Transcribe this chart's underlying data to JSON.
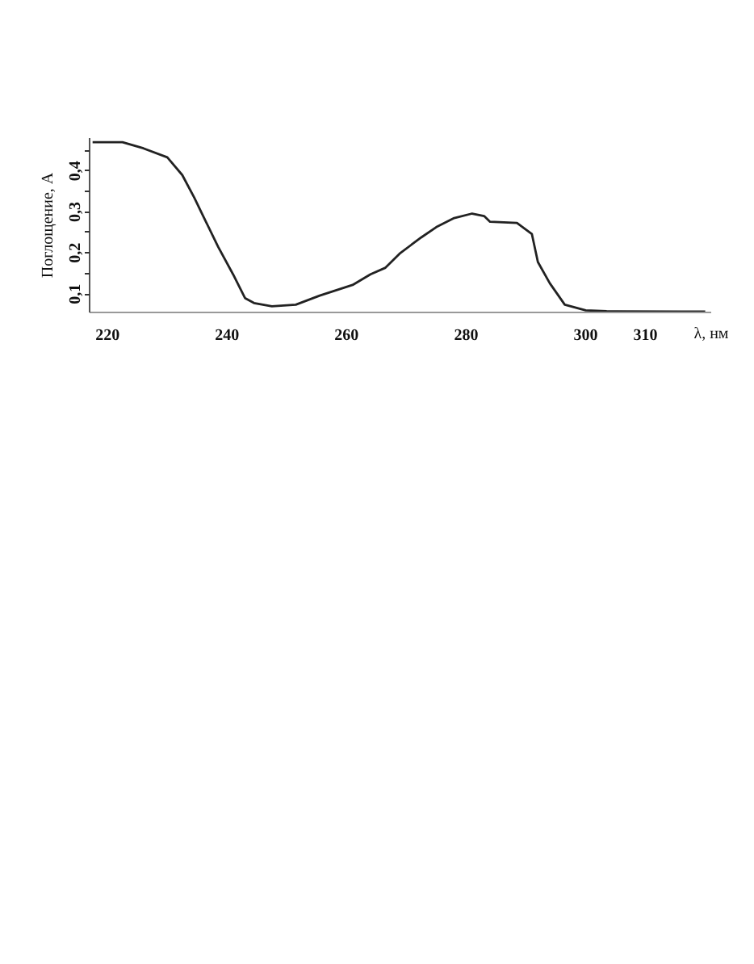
{
  "chart_data": {
    "type": "line",
    "xlabel": "λ, нм",
    "ylabel": "Поглощение, A",
    "xlim": [
      217,
      321
    ],
    "xticks": [
      220,
      240,
      260,
      280,
      300,
      310
    ],
    "ylim": [
      0.055,
      0.48
    ],
    "yticks": [
      {
        "value": 0.1,
        "label": "0,1"
      },
      {
        "value": 0.15,
        "label": null
      },
      {
        "value": 0.2,
        "label": "0,2"
      },
      {
        "value": 0.25,
        "label": null
      },
      {
        "value": 0.3,
        "label": "0,3"
      },
      {
        "value": 0.35,
        "label": null
      },
      {
        "value": 0.4,
        "label": "0,4"
      },
      {
        "value": 0.45,
        "label": null
      }
    ],
    "series": [
      {
        "color": "#222222",
        "x": [
          217.5,
          222.5,
          226,
          230,
          232.5,
          234.5,
          236,
          238.5,
          241,
          243,
          244.5,
          247.5,
          251.5,
          255.5,
          261,
          264,
          266.5,
          269,
          272.5,
          275,
          278,
          281,
          283,
          284,
          288.5,
          291,
          292,
          294,
          296.5,
          300,
          303.5,
          316,
          320
        ],
        "values": [
          0.47,
          0.47,
          0.455,
          0.433,
          0.39,
          0.335,
          0.29,
          0.215,
          0.148,
          0.09,
          0.078,
          0.07,
          0.074,
          0.096,
          0.122,
          0.148,
          0.164,
          0.2,
          0.238,
          0.263,
          0.285,
          0.296,
          0.29,
          0.276,
          0.273,
          0.246,
          0.178,
          0.126,
          0.074,
          0.06,
          0.058,
          0.057,
          0.057
        ]
      }
    ]
  }
}
